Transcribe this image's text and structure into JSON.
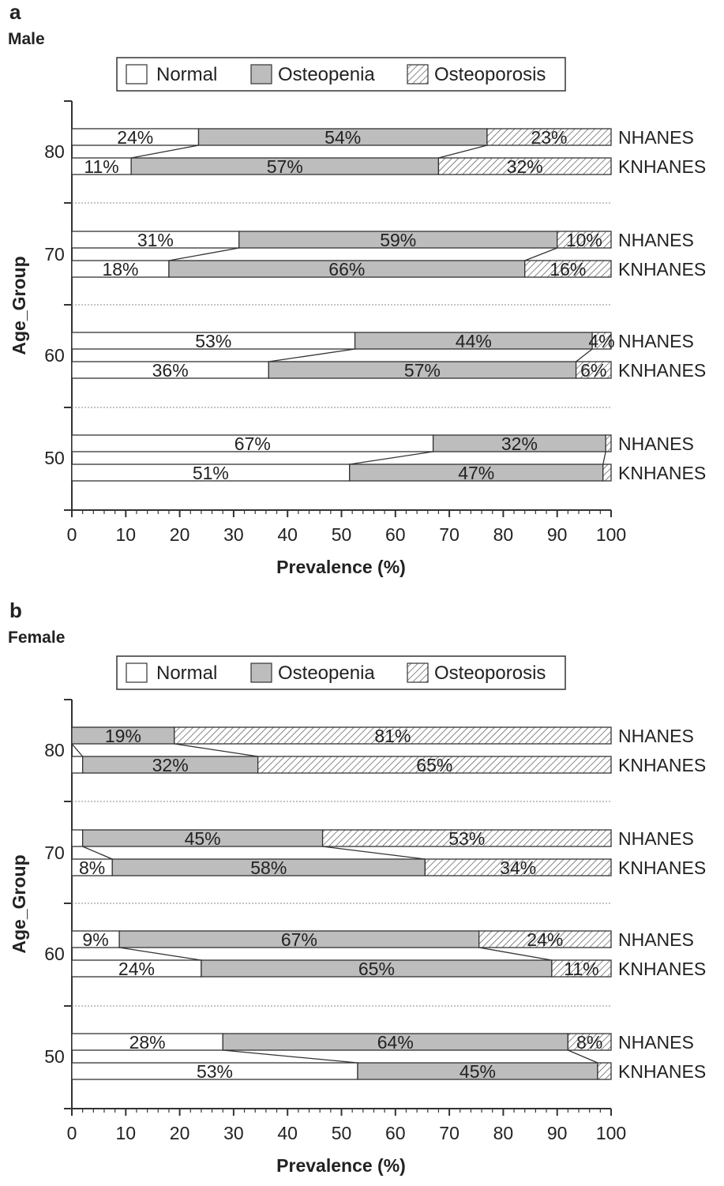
{
  "chart_data": [
    {
      "type": "bar",
      "panel_label": "a",
      "subtitle": "Male",
      "xlabel": "Prevalence (%)",
      "ylabel": "Age_Group",
      "xlim": [
        0,
        100
      ],
      "xticks": [
        "0",
        "10",
        "20",
        "30",
        "40",
        "50",
        "60",
        "70",
        "80",
        "90",
        "100"
      ],
      "legend": [
        "Normal",
        "Osteopenia",
        "Osteoporosis"
      ],
      "groups": [
        {
          "age": "80",
          "bars": [
            {
              "survey": "NHANES",
              "values": [
                23.5,
                53.5,
                23
              ],
              "labels": [
                "24%",
                "54%",
                "23%"
              ]
            },
            {
              "survey": "KNHANES",
              "values": [
                11,
                57,
                32
              ],
              "labels": [
                "11%",
                "57%",
                "32%"
              ]
            }
          ]
        },
        {
          "age": "70",
          "bars": [
            {
              "survey": "NHANES",
              "values": [
                31,
                59,
                10
              ],
              "labels": [
                "31%",
                "59%",
                "10%"
              ]
            },
            {
              "survey": "KNHANES",
              "values": [
                18,
                66,
                16
              ],
              "labels": [
                "18%",
                "66%",
                "16%"
              ]
            }
          ]
        },
        {
          "age": "60",
          "bars": [
            {
              "survey": "NHANES",
              "values": [
                52.5,
                44,
                3.5
              ],
              "labels": [
                "53%",
                "44%",
                "4%"
              ]
            },
            {
              "survey": "KNHANES",
              "values": [
                36.5,
                57,
                6.5
              ],
              "labels": [
                "36%",
                "57%",
                "6%"
              ]
            }
          ]
        },
        {
          "age": "50",
          "bars": [
            {
              "survey": "NHANES",
              "values": [
                67,
                32,
                1
              ],
              "labels": [
                "67%",
                "32%",
                ""
              ]
            },
            {
              "survey": "KNHANES",
              "values": [
                51.5,
                47,
                1.5
              ],
              "labels": [
                "51%",
                "47%",
                ""
              ]
            }
          ]
        }
      ]
    },
    {
      "type": "bar",
      "panel_label": "b",
      "subtitle": "Female",
      "xlabel": "Prevalence (%)",
      "ylabel": "Age_Group",
      "xlim": [
        0,
        100
      ],
      "xticks": [
        "0",
        "10",
        "20",
        "30",
        "40",
        "50",
        "60",
        "70",
        "80",
        "90",
        "100"
      ],
      "legend": [
        "Normal",
        "Osteopenia",
        "Osteoporosis"
      ],
      "groups": [
        {
          "age": "80",
          "bars": [
            {
              "survey": "NHANES",
              "values": [
                0,
                19,
                81
              ],
              "labels": [
                "",
                "19%",
                "81%"
              ]
            },
            {
              "survey": "KNHANES",
              "values": [
                2,
                32.5,
                65.5
              ],
              "labels": [
                "",
                "32%",
                "65%"
              ]
            }
          ]
        },
        {
          "age": "70",
          "bars": [
            {
              "survey": "NHANES",
              "values": [
                2,
                44.5,
                53.5
              ],
              "labels": [
                "",
                "45%",
                "53%"
              ]
            },
            {
              "survey": "KNHANES",
              "values": [
                7.5,
                58,
                34.5
              ],
              "labels": [
                "8%",
                "58%",
                "34%"
              ]
            }
          ]
        },
        {
          "age": "60",
          "bars": [
            {
              "survey": "NHANES",
              "values": [
                8.8,
                66.7,
                24.5
              ],
              "labels": [
                "9%",
                "67%",
                "24%"
              ]
            },
            {
              "survey": "KNHANES",
              "values": [
                24,
                65,
                11
              ],
              "labels": [
                "24%",
                "65%",
                "11%"
              ]
            }
          ]
        },
        {
          "age": "50",
          "bars": [
            {
              "survey": "NHANES",
              "values": [
                28,
                64,
                8
              ],
              "labels": [
                "28%",
                "64%",
                "8%"
              ]
            },
            {
              "survey": "KNHANES",
              "values": [
                53,
                44.5,
                2.5
              ],
              "labels": [
                "53%",
                "45%",
                ""
              ]
            }
          ]
        }
      ]
    }
  ],
  "colors": {
    "normal": "#ffffff",
    "osteopenia": "#bdbdbd",
    "osteoporosis_hatch": "#555555",
    "axis": "#333333",
    "separator": "#888888"
  }
}
